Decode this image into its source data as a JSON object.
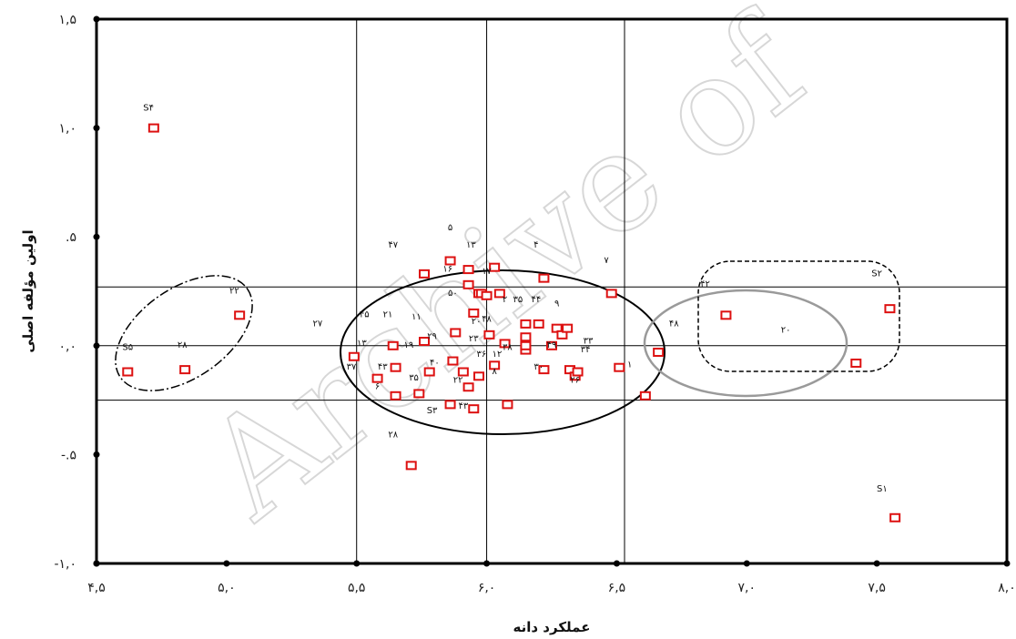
{
  "chart_data": {
    "type": "scatter",
    "title": "",
    "xlabel": "عملکرد دانه",
    "ylabel": "اولین مؤلفه اصلی",
    "xlim": [
      4.5,
      8.0
    ],
    "ylim": [
      -1.0,
      1.5
    ],
    "x_ticks": [
      "۴,۵",
      "۵,۰",
      "۵,۵",
      "۶,۰",
      "۶,۵",
      "۷,۰",
      "۷,۵",
      "۸,۰"
    ],
    "y_ticks": [
      "۱,۵",
      "۱,۰",
      ".۵",
      "۰,۰",
      "-.۵",
      "-۱,۰"
    ],
    "marker_color": "#dd1111",
    "vertical_reference_lines": [
      5.5,
      6.0,
      6.53
    ],
    "horizontal_reference_lines": [
      0.27,
      0.0,
      -0.25
    ],
    "watermark": "Archive of",
    "points": [
      {
        "x": 4.62,
        "y": -0.12
      },
      {
        "x": 4.72,
        "y": 1.0
      },
      {
        "x": 4.84,
        "y": -0.11
      },
      {
        "x": 5.05,
        "y": 0.14
      },
      {
        "x": 5.49,
        "y": -0.05
      },
      {
        "x": 5.58,
        "y": -0.15
      },
      {
        "x": 5.64,
        "y": 0.0
      },
      {
        "x": 5.65,
        "y": -0.1
      },
      {
        "x": 5.65,
        "y": -0.23
      },
      {
        "x": 5.71,
        "y": -0.55
      },
      {
        "x": 5.74,
        "y": -0.22
      },
      {
        "x": 5.76,
        "y": 0.33
      },
      {
        "x": 5.76,
        "y": 0.02
      },
      {
        "x": 5.78,
        "y": -0.12
      },
      {
        "x": 5.86,
        "y": 0.39
      },
      {
        "x": 5.86,
        "y": -0.27
      },
      {
        "x": 5.87,
        "y": -0.07
      },
      {
        "x": 5.88,
        "y": 0.06
      },
      {
        "x": 5.91,
        "y": -0.12
      },
      {
        "x": 5.93,
        "y": -0.19
      },
      {
        "x": 5.93,
        "y": 0.28
      },
      {
        "x": 5.93,
        "y": 0.35
      },
      {
        "x": 5.95,
        "y": 0.15
      },
      {
        "x": 5.95,
        "y": -0.29
      },
      {
        "x": 5.97,
        "y": 0.24
      },
      {
        "x": 5.97,
        "y": -0.14
      },
      {
        "x": 5.98,
        "y": 0.24
      },
      {
        "x": 6.0,
        "y": 0.23
      },
      {
        "x": 6.01,
        "y": 0.05
      },
      {
        "x": 6.03,
        "y": -0.09
      },
      {
        "x": 6.03,
        "y": 0.36
      },
      {
        "x": 6.05,
        "y": 0.24
      },
      {
        "x": 6.07,
        "y": 0.01
      },
      {
        "x": 6.08,
        "y": -0.27
      },
      {
        "x": 6.15,
        "y": 0.1
      },
      {
        "x": 6.15,
        "y": 0.04
      },
      {
        "x": 6.15,
        "y": -0.02
      },
      {
        "x": 6.15,
        "y": 0.0
      },
      {
        "x": 6.2,
        "y": 0.1
      },
      {
        "x": 6.22,
        "y": 0.31
      },
      {
        "x": 6.22,
        "y": -0.11
      },
      {
        "x": 6.25,
        "y": 0.0
      },
      {
        "x": 6.27,
        "y": 0.08
      },
      {
        "x": 6.29,
        "y": 0.05
      },
      {
        "x": 6.31,
        "y": 0.08
      },
      {
        "x": 6.32,
        "y": -0.11
      },
      {
        "x": 6.34,
        "y": -0.14
      },
      {
        "x": 6.35,
        "y": -0.12
      },
      {
        "x": 6.48,
        "y": 0.24
      },
      {
        "x": 6.51,
        "y": -0.1
      },
      {
        "x": 6.61,
        "y": -0.23
      },
      {
        "x": 6.66,
        "y": -0.03
      },
      {
        "x": 6.92,
        "y": 0.14
      },
      {
        "x": 7.42,
        "y": -0.08
      },
      {
        "x": 7.55,
        "y": 0.17
      },
      {
        "x": 7.57,
        "y": -0.79
      }
    ],
    "labels": [
      {
        "text": "S۴",
        "x": 4.7,
        "y": 1.08
      },
      {
        "text": "۲۲",
        "x": 5.03,
        "y": 0.24
      },
      {
        "text": "S۵",
        "x": 4.62,
        "y": -0.02
      },
      {
        "text": "۲۸",
        "x": 4.83,
        "y": -0.01
      },
      {
        "text": "۵",
        "x": 5.86,
        "y": 0.53
      },
      {
        "text": "۴۷",
        "x": 5.64,
        "y": 0.45
      },
      {
        "text": "۱۳",
        "x": 5.94,
        "y": 0.45
      },
      {
        "text": "۴",
        "x": 6.19,
        "y": 0.45
      },
      {
        "text": "۷",
        "x": 6.46,
        "y": 0.38
      },
      {
        "text": "۱۶",
        "x": 5.85,
        "y": 0.34
      },
      {
        "text": "۱۷",
        "x": 6.0,
        "y": 0.33
      },
      {
        "text": "۵۰",
        "x": 5.87,
        "y": 0.23
      },
      {
        "text": "۲",
        "x": 6.07,
        "y": 0.2
      },
      {
        "text": "۳۵",
        "x": 6.12,
        "y": 0.2
      },
      {
        "text": "۴۴",
        "x": 6.19,
        "y": 0.2
      },
      {
        "text": "۹",
        "x": 6.27,
        "y": 0.18
      },
      {
        "text": "۲۷",
        "x": 5.35,
        "y": 0.09
      },
      {
        "text": "۴۵",
        "x": 5.53,
        "y": 0.13
      },
      {
        "text": "۲۱",
        "x": 5.62,
        "y": 0.13
      },
      {
        "text": "۱۱",
        "x": 5.73,
        "y": 0.12
      },
      {
        "text": "۴۸",
        "x": 6.0,
        "y": 0.11
      },
      {
        "text": "۲۰",
        "x": 5.96,
        "y": 0.1
      },
      {
        "text": "۲۹",
        "x": 5.79,
        "y": 0.03
      },
      {
        "text": "۲۳",
        "x": 5.95,
        "y": 0.02
      },
      {
        "text": "۳۳",
        "x": 6.39,
        "y": 0.01
      },
      {
        "text": "۴۹",
        "x": 6.25,
        "y": -0.01
      },
      {
        "text": "۴۸",
        "x": 6.72,
        "y": 0.09
      },
      {
        "text": "۳۸",
        "x": 6.08,
        "y": -0.02
      },
      {
        "text": "۱۹",
        "x": 5.7,
        "y": -0.01
      },
      {
        "text": "۳۴",
        "x": 6.38,
        "y": -0.03
      },
      {
        "text": "۱۳",
        "x": 5.52,
        "y": 0.0
      },
      {
        "text": "۱۲",
        "x": 6.04,
        "y": -0.05
      },
      {
        "text": "۳۶",
        "x": 5.98,
        "y": -0.05
      },
      {
        "text": "۴۰",
        "x": 5.8,
        "y": -0.09
      },
      {
        "text": "۳۰",
        "x": 6.2,
        "y": -0.11
      },
      {
        "text": "۳۷",
        "x": 5.48,
        "y": -0.11
      },
      {
        "text": "۴۳",
        "x": 5.6,
        "y": -0.11
      },
      {
        "text": "۱",
        "x": 6.55,
        "y": -0.1
      },
      {
        "text": "۸",
        "x": 6.03,
        "y": -0.13
      },
      {
        "text": "۳۵",
        "x": 5.72,
        "y": -0.16
      },
      {
        "text": "۲۲",
        "x": 5.89,
        "y": -0.17
      },
      {
        "text": "۲۶",
        "x": 6.34,
        "y": -0.17
      },
      {
        "text": "۶",
        "x": 5.58,
        "y": -0.2
      },
      {
        "text": "S۳",
        "x": 5.79,
        "y": -0.31
      },
      {
        "text": "۴۳",
        "x": 5.91,
        "y": -0.29
      },
      {
        "text": "۲۸",
        "x": 5.64,
        "y": -0.42
      },
      {
        "text": "۴۲",
        "x": 6.84,
        "y": 0.27
      },
      {
        "text": "S۲",
        "x": 7.5,
        "y": 0.32
      },
      {
        "text": "۲۰",
        "x": 7.15,
        "y": 0.06
      },
      {
        "text": "S۱",
        "x": 7.52,
        "y": -0.67
      }
    ]
  }
}
